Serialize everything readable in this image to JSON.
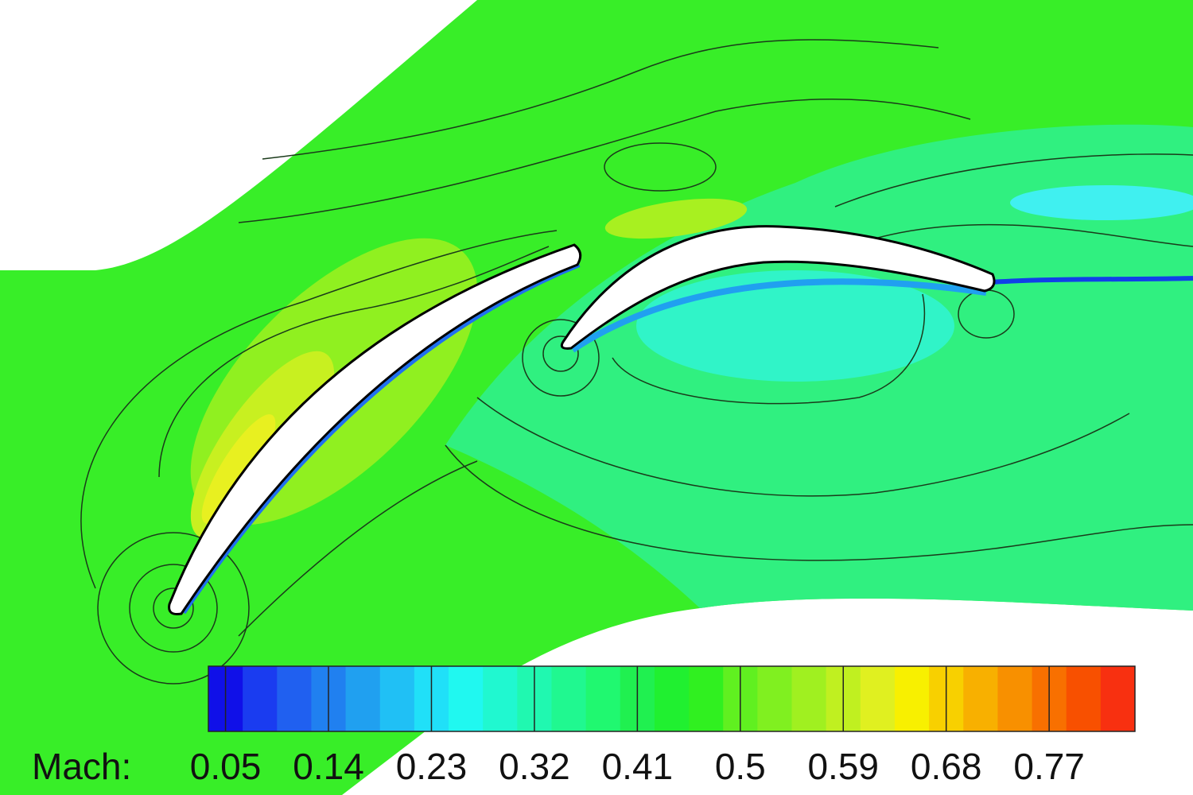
{
  "chart_data": {
    "type": "contour",
    "colorbar": {
      "label": "Mach:",
      "lim": [
        0.035,
        0.845
      ],
      "ticks": [
        0.05,
        0.14,
        0.23,
        0.32,
        0.41,
        0.5,
        0.59,
        0.68,
        0.77
      ],
      "levels": [
        0.035,
        0.065,
        0.095,
        0.125,
        0.155,
        0.185,
        0.215,
        0.245,
        0.275,
        0.305,
        0.335,
        0.365,
        0.395,
        0.425,
        0.455,
        0.485,
        0.515,
        0.545,
        0.575,
        0.605,
        0.635,
        0.665,
        0.695,
        0.725,
        0.755,
        0.785,
        0.815,
        0.845
      ],
      "colors": [
        "#1010e8",
        "#1a3cf0",
        "#2060f0",
        "#2080f0",
        "#20a0f0",
        "#20c0f5",
        "#20e0f8",
        "#20f8f0",
        "#20f8d0",
        "#20f8b0",
        "#20f890",
        "#20f870",
        "#20f050",
        "#20f030",
        "#30f020",
        "#60f020",
        "#80f020",
        "#a0f020",
        "#c0f020",
        "#e0f020",
        "#f8f000",
        "#f8d000",
        "#f8b000",
        "#f89000",
        "#f87000",
        "#f85000",
        "#f83010"
      ]
    }
  }
}
